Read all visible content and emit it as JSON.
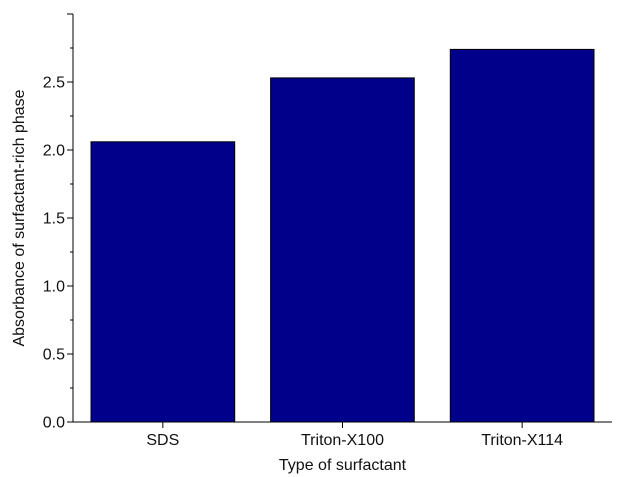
{
  "chart_data": {
    "type": "bar",
    "categories": [
      "SDS",
      "Triton-X100",
      "Triton-X114"
    ],
    "values": [
      2.06,
      2.53,
      2.74
    ],
    "xlabel": "Type of surfactant",
    "ylabel": "Absorbance of surfactant-rich phase",
    "ylim": [
      0.0,
      3.0
    ],
    "yticks": [
      "0.0",
      "0.5",
      "1.0",
      "1.5",
      "2.0",
      "2.5"
    ],
    "grid": false,
    "legend": false,
    "colors": {
      "bar_fill": "#00008b",
      "bar_stroke": "#000000",
      "axis": "#000000"
    }
  }
}
